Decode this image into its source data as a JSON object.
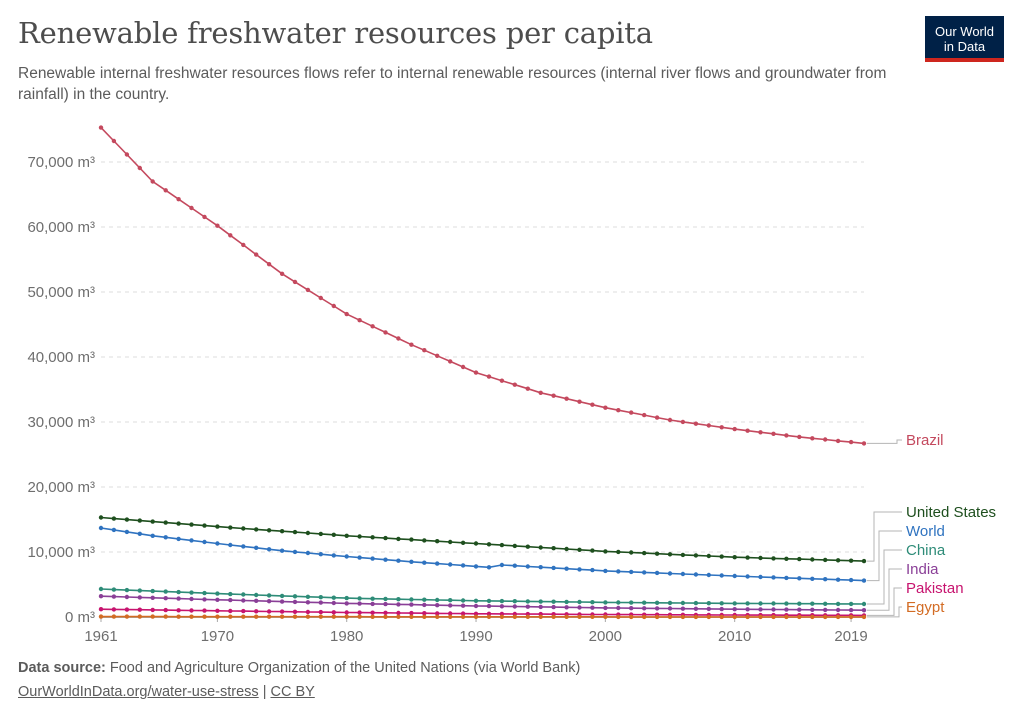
{
  "header": {
    "title": "Renewable freshwater resources per capita",
    "subtitle": "Renewable internal freshwater resources flows refer to internal renewable resources (internal river flows and groundwater from rainfall) in the country."
  },
  "logo": {
    "line1": "Our World",
    "line2": "in Data"
  },
  "footer": {
    "source_label": "Data source:",
    "source_text": "Food and Agriculture Organization of the United Nations (via World Bank)",
    "link_text": "OurWorldInData.org/water-use-stress",
    "separator": "|",
    "license": "CC BY"
  },
  "chart_data": {
    "type": "line",
    "x_ticks": [
      "1961",
      "1970",
      "1980",
      "1990",
      "2000",
      "2010",
      "2019"
    ],
    "y_ticks": [
      "0 m³",
      "10,000 m³",
      "20,000 m³",
      "30,000 m³",
      "40,000 m³",
      "50,000 m³",
      "60,000 m³",
      "70,000 m³"
    ],
    "xlim": [
      1961,
      2020
    ],
    "ylim": [
      0,
      70000
    ],
    "grid": "horizontal dashed",
    "legend": "right, line-end labels",
    "series": [
      {
        "name": "Brazil",
        "color": "#c4495e",
        "points": [
          [
            1961,
            75300
          ],
          [
            1965,
            67000
          ],
          [
            1970,
            60200
          ],
          [
            1975,
            52800
          ],
          [
            1980,
            46600
          ],
          [
            1985,
            41900
          ],
          [
            1990,
            37600
          ],
          [
            1995,
            34500
          ],
          [
            2000,
            32200
          ],
          [
            2005,
            30300
          ],
          [
            2010,
            28900
          ],
          [
            2015,
            27700
          ],
          [
            2020,
            26700
          ]
        ]
      },
      {
        "name": "United States",
        "color": "#1e4f1e",
        "points": [
          [
            1961,
            15300
          ],
          [
            1970,
            13900
          ],
          [
            1980,
            12500
          ],
          [
            1990,
            11300
          ],
          [
            2000,
            10100
          ],
          [
            2010,
            9200
          ],
          [
            2020,
            8600
          ]
        ]
      },
      {
        "name": "World",
        "color": "#2f73c0",
        "points": [
          [
            1961,
            13700
          ],
          [
            1965,
            12500
          ],
          [
            1970,
            11300
          ],
          [
            1975,
            10200
          ],
          [
            1980,
            9300
          ],
          [
            1985,
            8500
          ],
          [
            1991,
            7650
          ],
          [
            1992,
            8000
          ],
          [
            2000,
            7100
          ],
          [
            2010,
            6300
          ],
          [
            2020,
            5600
          ]
        ]
      },
      {
        "name": "China",
        "color": "#2e8c78",
        "points": [
          [
            1961,
            4300
          ],
          [
            1970,
            3600
          ],
          [
            1980,
            2900
          ],
          [
            1990,
            2500
          ],
          [
            2000,
            2250
          ],
          [
            2010,
            2100
          ],
          [
            2020,
            2000
          ]
        ]
      },
      {
        "name": "India",
        "color": "#8a3f97",
        "points": [
          [
            1961,
            3200
          ],
          [
            1970,
            2650
          ],
          [
            1980,
            2100
          ],
          [
            1990,
            1700
          ],
          [
            2000,
            1400
          ],
          [
            2010,
            1200
          ],
          [
            2020,
            1050
          ]
        ]
      },
      {
        "name": "Pakistan",
        "color": "#c7146f",
        "points": [
          [
            1961,
            1200
          ],
          [
            1970,
            950
          ],
          [
            1980,
            700
          ],
          [
            1990,
            500
          ],
          [
            2000,
            380
          ],
          [
            2010,
            300
          ],
          [
            2020,
            250
          ]
        ]
      },
      {
        "name": "Egypt",
        "color": "#d36c24",
        "points": [
          [
            1961,
            60
          ],
          [
            1990,
            30
          ],
          [
            2020,
            10
          ]
        ]
      }
    ]
  }
}
